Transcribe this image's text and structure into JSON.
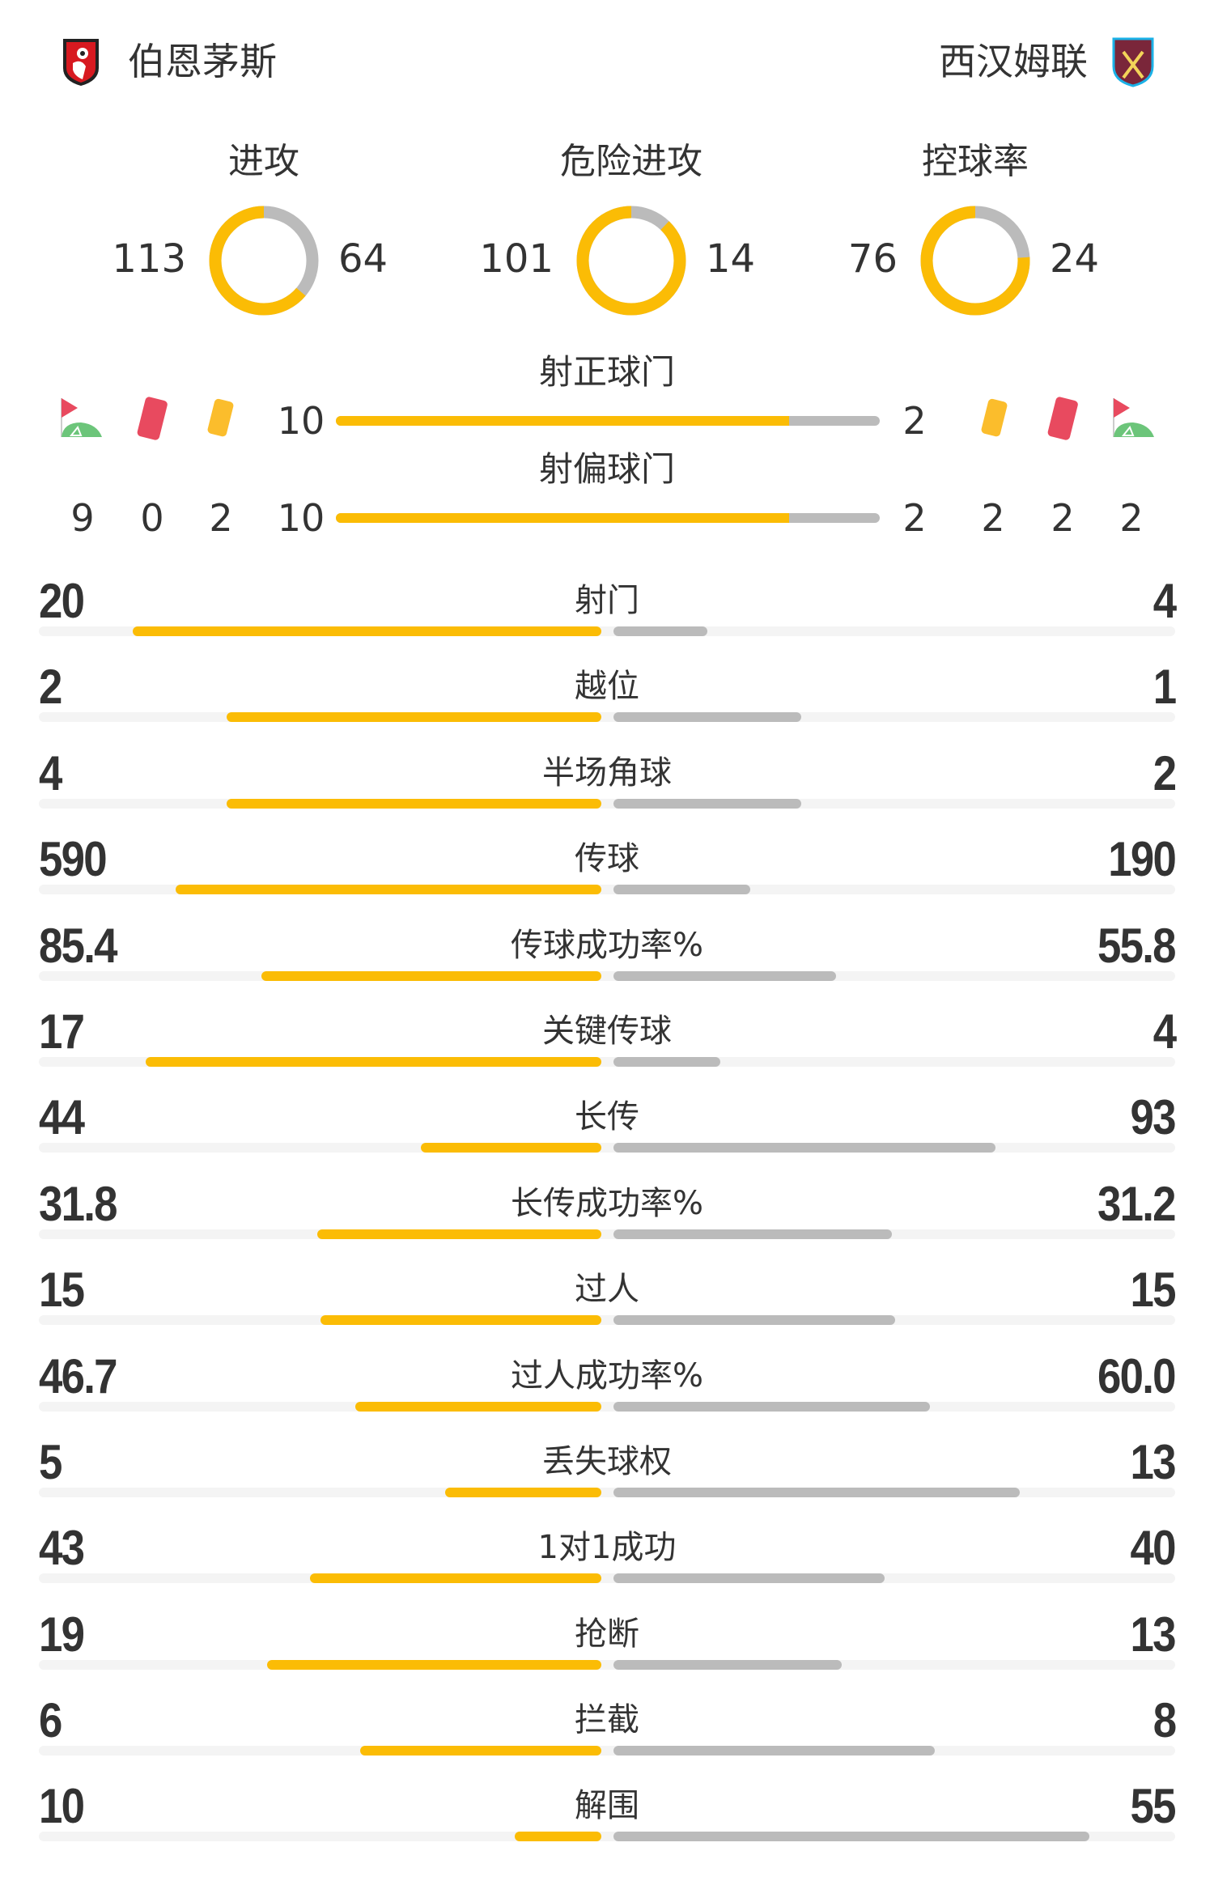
{
  "colors": {
    "home": "#fbbc05",
    "away": "#bbbbbb",
    "track": "#f4f4f4",
    "red_card": "#e84a5f",
    "yellow_card": "#fbbd2c",
    "corner_green": "#6cc57a"
  },
  "header": {
    "home": {
      "name": "伯恩茅斯",
      "crest_icon": "bournemouth-crest-icon"
    },
    "away": {
      "name": "西汉姆联",
      "crest_icon": "west-ham-crest-icon"
    }
  },
  "donuts": [
    {
      "label": "进攻",
      "home": 113,
      "away": 64
    },
    {
      "label": "危险进攻",
      "home": 101,
      "away": 14
    },
    {
      "label": "控球率",
      "home": 76,
      "away": 24
    }
  ],
  "shots": {
    "on_target": {
      "label": "射正球门",
      "home": 10,
      "away": 2
    },
    "off_target": {
      "label": "射偏球门",
      "home": 10,
      "away": 2
    }
  },
  "events": {
    "home": {
      "corners": 9,
      "red_cards": 0,
      "yellow_cards": 2
    },
    "away": {
      "yellow_cards": 2,
      "red_cards": 2,
      "corners": 2
    },
    "icons": [
      "corner-flag-icon",
      "red-card-icon",
      "yellow-card-icon"
    ]
  },
  "stats": [
    {
      "label": "射门",
      "home": "20",
      "away": "4"
    },
    {
      "label": "越位",
      "home": "2",
      "away": "1"
    },
    {
      "label": "半场角球",
      "home": "4",
      "away": "2"
    },
    {
      "label": "传球",
      "home": "590",
      "away": "190"
    },
    {
      "label": "传球成功率%",
      "home": "85.4",
      "away": "55.8"
    },
    {
      "label": "关键传球",
      "home": "17",
      "away": "4"
    },
    {
      "label": "长传",
      "home": "44",
      "away": "93"
    },
    {
      "label": "长传成功率%",
      "home": "31.8",
      "away": "31.2"
    },
    {
      "label": "过人",
      "home": "15",
      "away": "15"
    },
    {
      "label": "过人成功率%",
      "home": "46.7",
      "away": "60.0"
    },
    {
      "label": "丢失球权",
      "home": "5",
      "away": "13"
    },
    {
      "label": "1对1成功",
      "home": "43",
      "away": "40"
    },
    {
      "label": "抢断",
      "home": "19",
      "away": "13"
    },
    {
      "label": "拦截",
      "home": "6",
      "away": "8"
    },
    {
      "label": "解围",
      "home": "10",
      "away": "55"
    }
  ]
}
